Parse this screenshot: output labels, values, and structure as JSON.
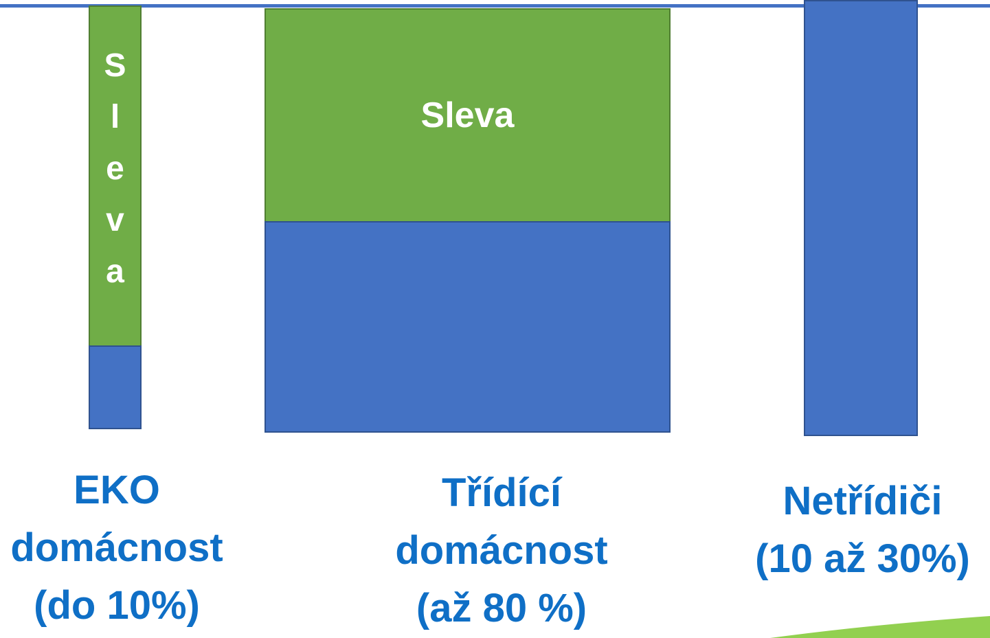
{
  "columns": [
    {
      "bar_text": "Sleva",
      "label_lines": [
        "EKO",
        "domácnost",
        "(do 10%)"
      ]
    },
    {
      "bar_text": "Sleva",
      "label_lines": [
        "Třídící",
        "domácnost",
        "(až 80 %)"
      ]
    },
    {
      "label_lines": [
        "Netřídiči",
        "(10 až 30%)"
      ]
    }
  ]
}
